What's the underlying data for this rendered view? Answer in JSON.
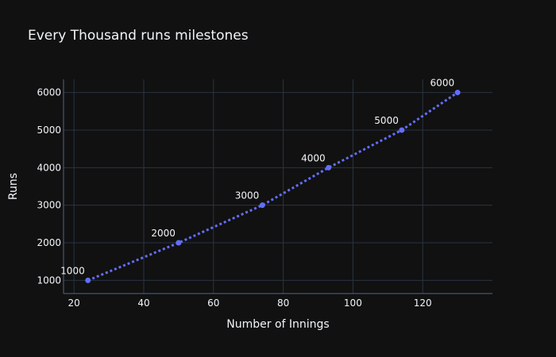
{
  "chart_data": {
    "type": "line",
    "title": "Every Thousand runs milestones",
    "xlabel": "Number of Innings",
    "ylabel": "Runs",
    "x_ticks": [
      20,
      40,
      60,
      80,
      100,
      120
    ],
    "y_ticks": [
      1000,
      2000,
      3000,
      4000,
      5000,
      6000
    ],
    "xlim": [
      17,
      140
    ],
    "ylim": [
      650,
      6350
    ],
    "grid": true,
    "series": [
      {
        "x": [
          24,
          50,
          74,
          93,
          114,
          130
        ],
        "y": [
          1000,
          2000,
          3000,
          4000,
          5000,
          6000
        ],
        "labels": [
          "1000",
          "2000",
          "3000",
          "4000",
          "5000",
          "6000"
        ],
        "line_style": "dotted",
        "markers": true
      }
    ]
  },
  "colors": {
    "background": "#111111",
    "grid": "#283442",
    "series": "#636efa",
    "text": "#f2f5fa"
  }
}
